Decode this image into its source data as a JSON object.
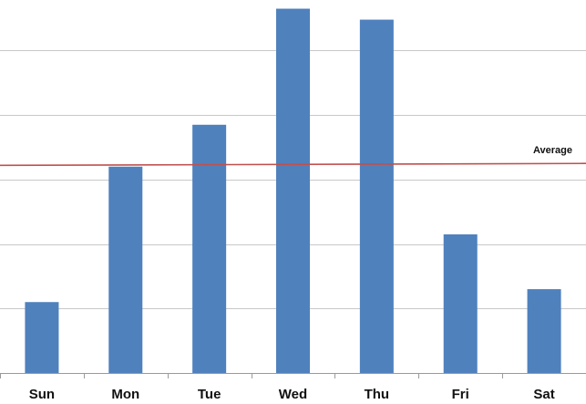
{
  "chart_data": {
    "type": "bar",
    "categories": [
      "Sun",
      "Mon",
      "Tue",
      "Wed",
      "Thu",
      "Fri",
      "Sat"
    ],
    "values": [
      11,
      32,
      38.5,
      56.5,
      54.8,
      21.5,
      13
    ],
    "ylim": [
      0,
      57
    ],
    "grid": true,
    "bar_color": "#4f81bd",
    "average": {
      "label": "Average",
      "start_value": 32.2,
      "end_value": 32.5,
      "color": "#c0504d"
    }
  }
}
